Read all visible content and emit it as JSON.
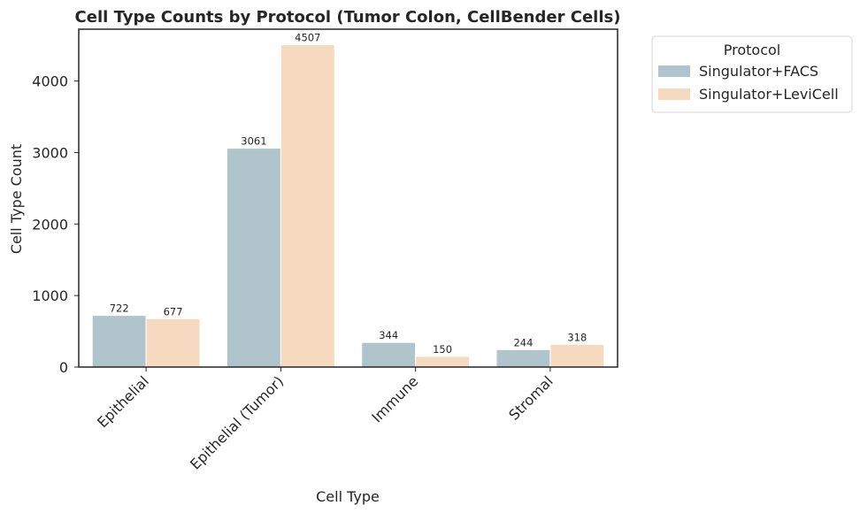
{
  "chart_data": {
    "type": "bar",
    "title": "Cell Type Counts by Protocol (Tumor Colon, CellBender Cells)",
    "xlabel": "Cell Type",
    "ylabel": "Cell Type Count",
    "categories": [
      "Epithelial",
      "Epithelial (Tumor)",
      "Immune",
      "Stromal"
    ],
    "series": [
      {
        "name": "Singulator+FACS",
        "values": [
          722,
          3061,
          344,
          244
        ],
        "color": "#b0c4cb"
      },
      {
        "name": "Singulator+LeviCell",
        "values": [
          677,
          4507,
          150,
          318
        ],
        "color": "#f6dac0"
      }
    ],
    "ylim": [
      0,
      4725
    ],
    "yticks": [
      0,
      1000,
      2000,
      3000,
      4000
    ],
    "grid": false,
    "legend": {
      "title": "Protocol",
      "placement": "outside-top-right"
    }
  }
}
